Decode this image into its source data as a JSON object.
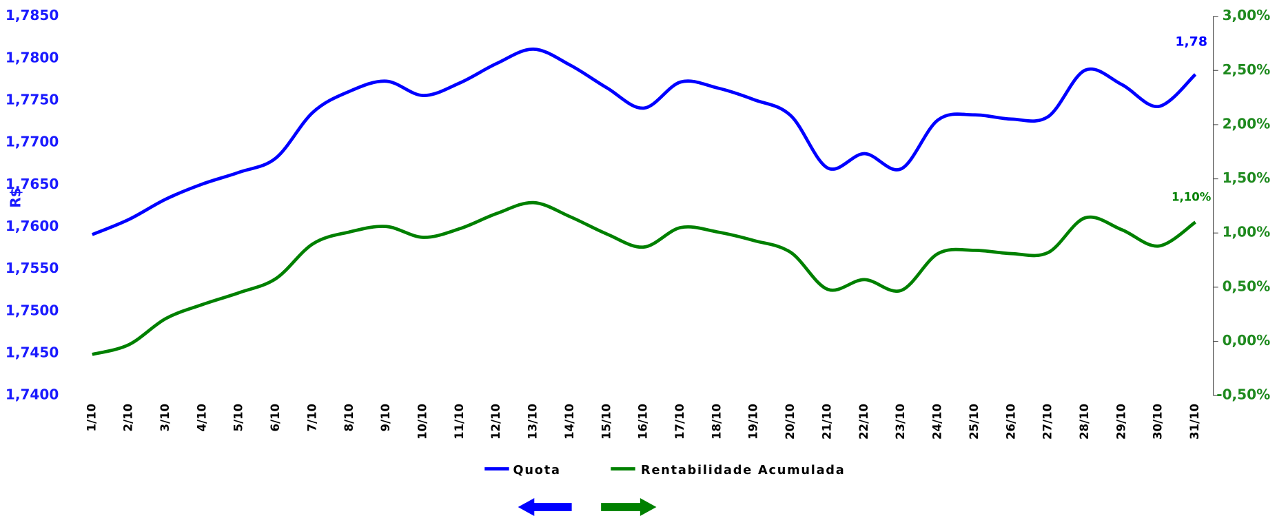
{
  "chart_data": {
    "type": "line",
    "y_label": "R$",
    "categories": [
      "1/10",
      "2/10",
      "3/10",
      "4/10",
      "5/10",
      "6/10",
      "7/10",
      "8/10",
      "9/10",
      "10/10",
      "11/10",
      "12/10",
      "13/10",
      "14/10",
      "15/10",
      "16/10",
      "17/10",
      "18/10",
      "19/10",
      "20/10",
      "21/10",
      "22/10",
      "23/10",
      "24/10",
      "25/10",
      "26/10",
      "27/10",
      "28/10",
      "29/10",
      "30/10",
      "31/10"
    ],
    "ylim": [
      1.74,
      1.785
    ],
    "yticks": [
      {
        "value": 1.785,
        "label": "1,7850"
      },
      {
        "value": 1.78,
        "label": "1,7800"
      },
      {
        "value": 1.775,
        "label": "1,7750"
      },
      {
        "value": 1.77,
        "label": "1,7700"
      },
      {
        "value": 1.765,
        "label": "1,7650"
      },
      {
        "value": 1.76,
        "label": "1,7600"
      },
      {
        "value": 1.755,
        "label": "1,7550"
      },
      {
        "value": 1.75,
        "label": "1,7500"
      },
      {
        "value": 1.745,
        "label": "1,7450"
      },
      {
        "value": 1.74,
        "label": "1,7400"
      }
    ],
    "y2lim": [
      -0.5,
      3.0
    ],
    "y2ticks": [
      {
        "value": 3.0,
        "label": "3,00%"
      },
      {
        "value": 2.5,
        "label": "2,50%"
      },
      {
        "value": 2.0,
        "label": "2,00%"
      },
      {
        "value": 1.5,
        "label": "1,50%"
      },
      {
        "value": 1.0,
        "label": "1,00%"
      },
      {
        "value": 0.5,
        "label": "0,50%"
      },
      {
        "value": 0.0,
        "label": "0,00%"
      },
      {
        "value": -0.5,
        "label": "-0,50%"
      }
    ],
    "series": [
      {
        "name": "Quota",
        "color": "#0000ff",
        "axis": "y",
        "values": [
          1.7591,
          1.7609,
          1.7633,
          1.7651,
          1.7665,
          1.7682,
          1.7736,
          1.7761,
          1.7773,
          1.7756,
          1.7771,
          1.7794,
          1.7811,
          1.7792,
          1.7765,
          1.7741,
          1.7772,
          1.7765,
          1.7751,
          1.7732,
          1.767,
          1.7687,
          1.7669,
          1.7727,
          1.7733,
          1.7728,
          1.7731,
          1.7786,
          1.7769,
          1.7743,
          1.7781
        ],
        "value_labels": [
          null,
          null,
          null,
          null,
          null,
          null,
          null,
          null,
          null,
          null,
          null,
          null,
          null,
          null,
          null,
          null,
          null,
          null,
          null,
          null,
          null,
          null,
          null,
          null,
          null,
          null,
          null,
          null,
          null,
          null,
          "1,78"
        ]
      },
      {
        "name": "Rentabilidade Acumulada",
        "color": "#008000",
        "axis": "y2",
        "values": [
          -0.12,
          -0.03,
          0.21,
          0.34,
          0.45,
          0.58,
          0.9,
          1.01,
          1.06,
          0.96,
          1.04,
          1.18,
          1.28,
          1.15,
          0.99,
          0.87,
          1.05,
          1.01,
          0.93,
          0.82,
          0.48,
          0.57,
          0.47,
          0.81,
          0.84,
          0.81,
          0.82,
          1.14,
          1.03,
          0.88,
          1.1
        ],
        "value_labels": [
          null,
          null,
          null,
          null,
          null,
          null,
          null,
          null,
          null,
          null,
          null,
          null,
          null,
          null,
          null,
          null,
          null,
          null,
          null,
          null,
          null,
          null,
          null,
          null,
          null,
          null,
          null,
          null,
          null,
          null,
          "1,10%"
        ]
      }
    ]
  }
}
